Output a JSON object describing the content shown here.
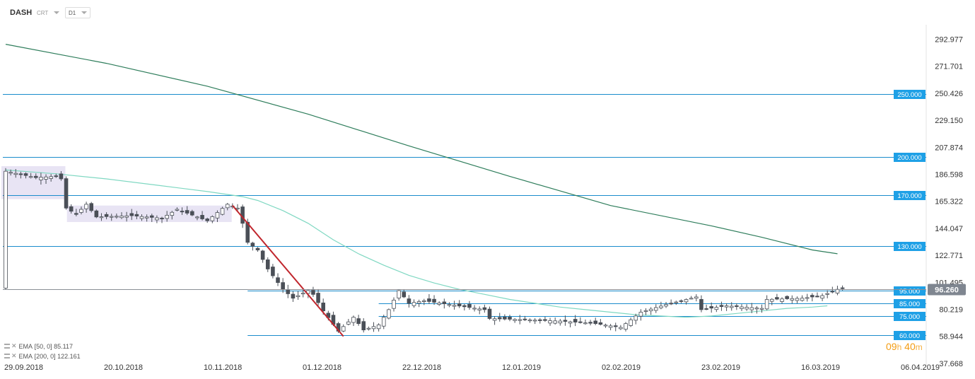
{
  "toolbar": {
    "symbol": "DASH",
    "chart_type": "CRT",
    "timeframe": "D1"
  },
  "indicators": [
    {
      "label": "EMA",
      "params": "[50, 0]",
      "value": "85.117"
    },
    {
      "label": "EMA",
      "params": "[200, 0]",
      "value": "122.161"
    }
  ],
  "countdown": {
    "hours": "09",
    "h_unit": "h",
    "minutes": "40",
    "m_unit": "m"
  },
  "colors": {
    "level_line": "#1a8ccc",
    "level_label_bg": "#1ea0e6",
    "ema50": "#7fd8c2",
    "ema200": "#2e7d5b",
    "trend": "#c0262d",
    "candle": "#4a4f57",
    "zone": "#e8e4f4",
    "price_tag": "#7f8690"
  },
  "chart_data": {
    "type": "candlestick",
    "y_ticks": [
      292.977,
      271.701,
      250.426,
      229.15,
      207.874,
      186.598,
      165.322,
      144.047,
      122.771,
      101.495,
      80.219,
      58.944,
      37.668
    ],
    "y_tick_labels": [
      "292.977",
      "271.701",
      "250.426",
      "229.150",
      "207.874",
      "186.598",
      "165.322",
      "144.047",
      "122.771",
      "101.495",
      "80.219",
      "58.944",
      "37.668"
    ],
    "ylim": [
      37.668,
      292.977
    ],
    "x_labels": [
      "29.09.2018",
      "20.10.2018",
      "10.11.2018",
      "01.12.2018",
      "22.12.2018",
      "12.01.2019",
      "02.02.2019",
      "23.02.2019",
      "16.03.2019",
      "06.04.2019"
    ],
    "current_price": {
      "value": 96.26,
      "label": "96.260"
    },
    "levels": [
      {
        "value": 250,
        "label": "250.000",
        "extent": "full"
      },
      {
        "value": 200,
        "label": "200.000",
        "extent": "full"
      },
      {
        "value": 170,
        "label": "170.000",
        "extent": "full"
      },
      {
        "value": 130,
        "label": "130.000",
        "extent": "full"
      },
      {
        "value": 95,
        "label": "95.000",
        "extent": "from-nov"
      },
      {
        "value": 85,
        "label": "85.000",
        "extent": "from-dec"
      },
      {
        "value": 75,
        "label": "75.000",
        "extent": "from-dec"
      },
      {
        "value": 60,
        "label": "60.000",
        "extent": "from-nov"
      }
    ],
    "ema50": [
      [
        0,
        190
      ],
      [
        10,
        187
      ],
      [
        20,
        183
      ],
      [
        30,
        178
      ],
      [
        40,
        173
      ],
      [
        47,
        169
      ],
      [
        50,
        166
      ],
      [
        55,
        158
      ],
      [
        60,
        148
      ],
      [
        65,
        135
      ],
      [
        70,
        124
      ],
      [
        75,
        115
      ],
      [
        80,
        107
      ],
      [
        85,
        101
      ],
      [
        90,
        96
      ],
      [
        95,
        92
      ],
      [
        100,
        88
      ],
      [
        105,
        85
      ],
      [
        110,
        82
      ],
      [
        115,
        80
      ],
      [
        120,
        78
      ],
      [
        125,
        76
      ],
      [
        130,
        75
      ],
      [
        135,
        74
      ],
      [
        140,
        75
      ],
      [
        145,
        77
      ],
      [
        150,
        79
      ],
      [
        155,
        81
      ],
      [
        160,
        82
      ],
      [
        163,
        83
      ]
    ],
    "ema200": [
      [
        0,
        289
      ],
      [
        20,
        274
      ],
      [
        40,
        256
      ],
      [
        60,
        234
      ],
      [
        80,
        209
      ],
      [
        100,
        185
      ],
      [
        120,
        162
      ],
      [
        140,
        146
      ],
      [
        150,
        137
      ],
      [
        160,
        127
      ],
      [
        165,
        124
      ]
    ],
    "trend_line": [
      [
        45,
        162
      ],
      [
        67,
        59
      ]
    ],
    "zones": [
      {
        "from": 0,
        "to": 11,
        "low": 167,
        "high": 193
      },
      {
        "from": 13,
        "to": 44,
        "low": 149,
        "high": 162
      }
    ]
  }
}
